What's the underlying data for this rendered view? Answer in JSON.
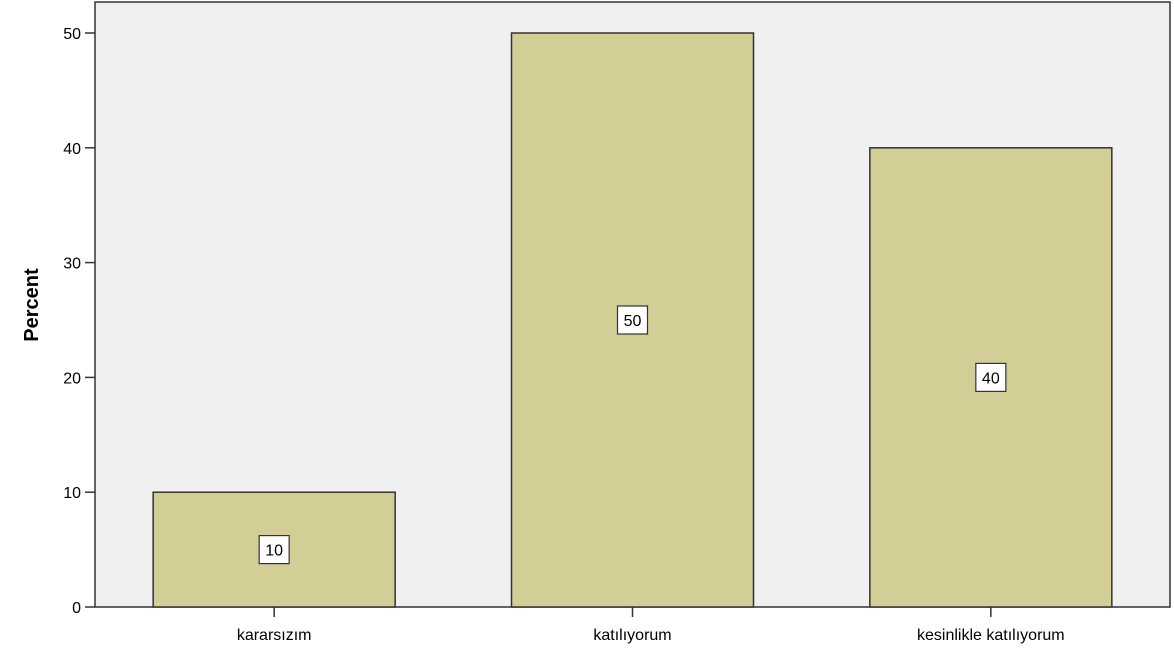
{
  "chart_data": {
    "type": "bar",
    "title": "",
    "xlabel": "",
    "ylabel": "Percent",
    "categories": [
      "kararsızım",
      "katılıyorum",
      "kesinlikle katılıyorum"
    ],
    "values": [
      10,
      50,
      40
    ],
    "data_labels": [
      "10",
      "50",
      "40"
    ],
    "ylim": [
      0,
      53
    ],
    "yticks": [
      0,
      10,
      20,
      30,
      40,
      50
    ],
    "ytick_labels": [
      "0",
      "10",
      "20",
      "30",
      "40",
      "50"
    ],
    "grid": false,
    "legend": "none",
    "colors": {
      "bar_fill": "#d3cd96",
      "bar_stroke": "#333333",
      "plot_background": "#f0f0f0",
      "label_box": "#ffffff"
    }
  }
}
